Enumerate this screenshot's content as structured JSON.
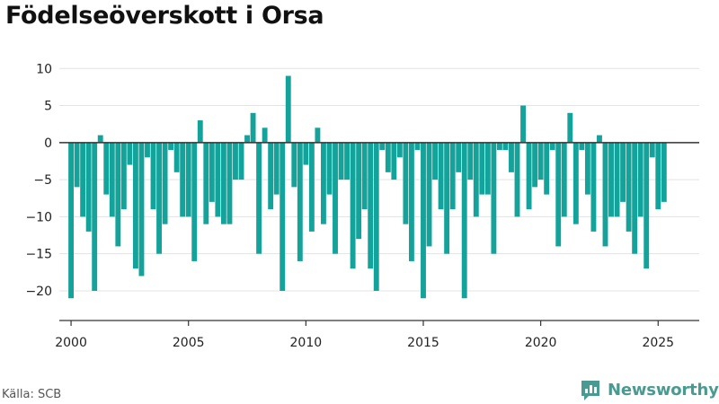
{
  "title": "Födelseöverskott i Orsa",
  "source": "Källa: SCB",
  "brand": {
    "name": "Newsworthy",
    "color": "#4a9a91"
  },
  "colors": {
    "bar": "#14a39a",
    "zero_line": "#333333",
    "grid": "#e3e3e3",
    "axis": "#333333"
  },
  "chart_data": {
    "type": "bar",
    "title": "Födelseöverskott i Orsa",
    "xlabel": "",
    "ylabel": "",
    "grid": true,
    "legend": "none",
    "ylim": [
      -24,
      11
    ],
    "yticks": [
      10,
      5,
      0,
      -5,
      -10,
      -15,
      -20
    ],
    "xlim": [
      1999.5,
      2026.75
    ],
    "xticks": [
      2000,
      2005,
      2010,
      2015,
      2020,
      2025
    ],
    "frequency": "quarterly",
    "start": "2000 Q1",
    "values": [
      -21,
      -6,
      -10,
      -12,
      -20,
      1,
      -7,
      -10,
      -14,
      -9,
      -3,
      -17,
      -18,
      -2,
      -9,
      -15,
      -11,
      -1,
      -4,
      -10,
      -10,
      -16,
      3,
      -11,
      -8,
      -10,
      -11,
      -11,
      -5,
      -5,
      1,
      4,
      -15,
      2,
      -9,
      -7,
      -20,
      9,
      -6,
      -16,
      -3,
      -12,
      2,
      -11,
      -7,
      -15,
      -5,
      -5,
      -17,
      -13,
      -9,
      -17,
      -20,
      -1,
      -4,
      -5,
      -2,
      -11,
      -16,
      -1,
      -21,
      -14,
      -5,
      -9,
      -15,
      -9,
      -4,
      -21,
      -5,
      -10,
      -7,
      -7,
      -15,
      -1,
      -1,
      -4,
      -10,
      5,
      -9,
      -6,
      -5,
      -7,
      -1,
      -14,
      -10,
      4,
      -11,
      -1,
      -7,
      -12,
      1,
      -14,
      -10,
      -10,
      -8,
      -12,
      -15,
      -10,
      -17,
      -2,
      -9,
      -8
    ]
  }
}
